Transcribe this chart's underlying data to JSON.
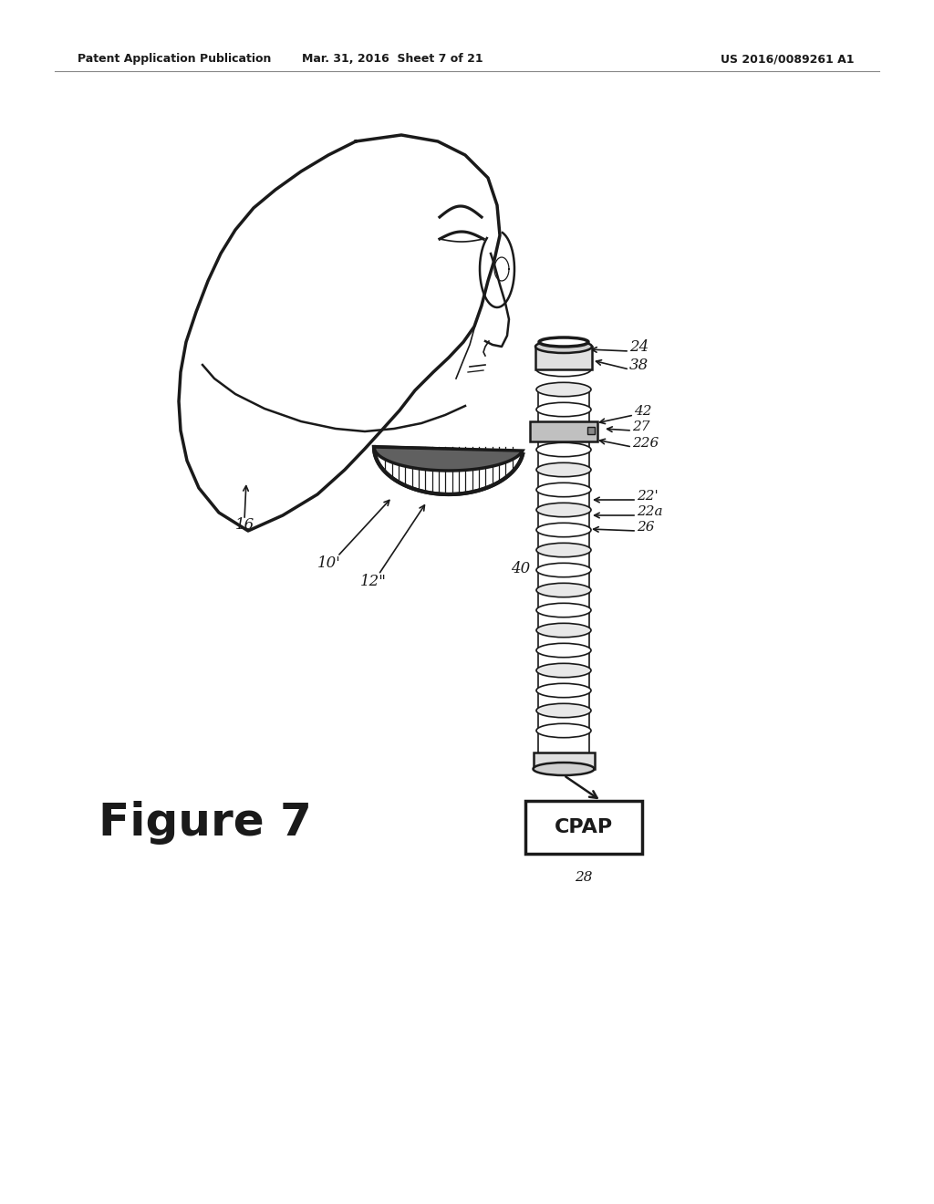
{
  "background_color": "#ffffff",
  "header_left": "Patent Application Publication",
  "header_mid": "Mar. 31, 2016  Sheet 7 of 21",
  "header_right": "US 2016/0089261 A1",
  "figure_label": "Figure 7",
  "cpap_label": "CPAP",
  "line_color": "#1a1a1a"
}
